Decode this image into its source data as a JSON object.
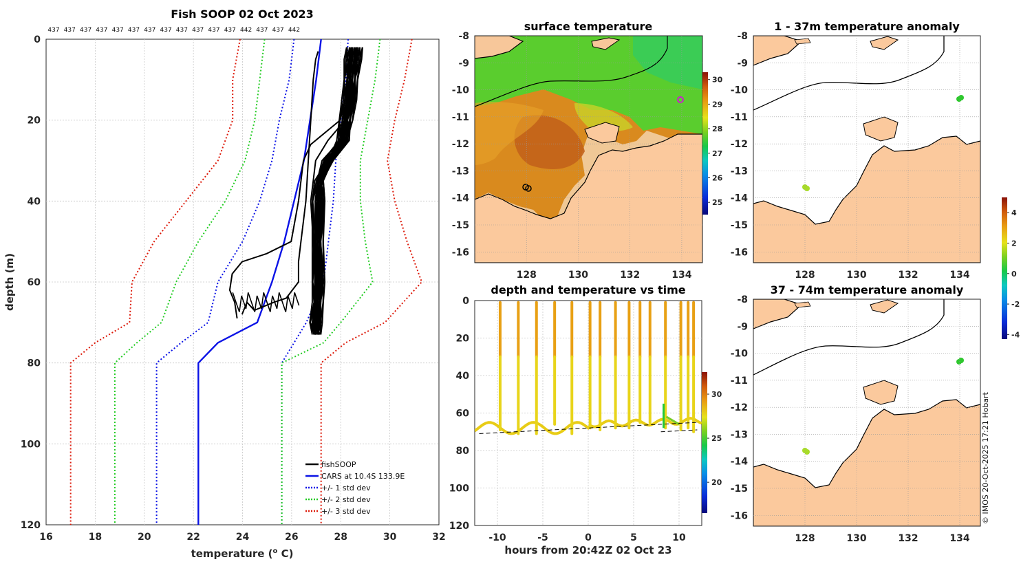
{
  "colors": {
    "land": "#fbc99d",
    "profile": "#000000",
    "cars": "#0a12e6",
    "std1": "#0a12e6",
    "std2": "#22cc22",
    "std3": "#dd1a0a",
    "grid": "#c8c8c8"
  },
  "chart_data": [
    {
      "name": "profile",
      "type": "line",
      "title": "Fish SOOP 02 Oct 2023",
      "top_labels": [
        "437",
        "437",
        "437",
        "437",
        "437",
        "437",
        "437",
        "437",
        "437",
        "437",
        "437",
        "437",
        "442",
        "437",
        "437",
        "442"
      ],
      "xlabel": "temperature (° C)",
      "xlabel_prefix": "temperature (",
      "xlabel_sup": "o",
      "xlabel_suffix": " C)",
      "ylabel": "depth (m)",
      "xlim": [
        16,
        32
      ],
      "ylim": [
        0,
        120
      ],
      "xticks": [
        16,
        18,
        20,
        22,
        24,
        26,
        28,
        30,
        32
      ],
      "yticks": [
        0,
        20,
        40,
        60,
        80,
        100,
        120
      ],
      "legend": [
        "fishSOOP",
        "CARS at 10.4S 133.9E",
        "+/- 1 std dev",
        "+/- 2 std dev",
        "+/- 3 std dev"
      ],
      "series": [
        {
          "name": "CARS",
          "depth": [
            0,
            10,
            30,
            50,
            60,
            65,
            70,
            75,
            80,
            120
          ],
          "temp": [
            27.2,
            27.0,
            26.5,
            25.7,
            25.2,
            24.9,
            24.6,
            23.0,
            22.2,
            22.2
          ]
        },
        {
          "name": "+1 std",
          "depth": [
            0,
            10,
            20,
            30,
            40,
            50,
            60,
            70,
            80,
            120
          ],
          "temp": [
            28.3,
            28.2,
            28.0,
            27.8,
            27.7,
            27.5,
            27.3,
            26.6,
            25.6,
            25.6
          ]
        },
        {
          "name": "-1 std",
          "depth": [
            0,
            10,
            20,
            30,
            40,
            50,
            60,
            70,
            75,
            80,
            120
          ],
          "temp": [
            26.1,
            25.9,
            25.5,
            25.2,
            24.7,
            24.0,
            23.0,
            22.6,
            21.5,
            20.5,
            20.5
          ]
        },
        {
          "name": "+2 std",
          "depth": [
            0,
            10,
            20,
            30,
            40,
            50,
            60,
            70,
            75,
            80,
            120
          ],
          "temp": [
            29.6,
            29.4,
            29.1,
            28.8,
            28.8,
            29.0,
            29.3,
            28.0,
            27.3,
            25.6,
            25.6
          ]
        },
        {
          "name": "-2 std",
          "depth": [
            0,
            10,
            20,
            30,
            40,
            50,
            60,
            70,
            75,
            80,
            120
          ],
          "temp": [
            24.9,
            24.7,
            24.5,
            24.1,
            23.3,
            22.2,
            21.3,
            20.7,
            19.7,
            18.8,
            18.8
          ]
        },
        {
          "name": "+3 std",
          "depth": [
            0,
            10,
            20,
            30,
            40,
            50,
            60,
            70,
            75,
            80,
            120
          ],
          "temp": [
            30.9,
            30.6,
            30.2,
            29.9,
            30.2,
            30.7,
            31.3,
            29.8,
            28.2,
            27.2,
            27.2
          ]
        },
        {
          "name": "-3 std",
          "depth": [
            0,
            10,
            20,
            30,
            40,
            50,
            60,
            70,
            75,
            80,
            120
          ],
          "temp": [
            23.9,
            23.6,
            23.6,
            23.0,
            21.7,
            20.4,
            19.5,
            19.4,
            18.0,
            17.0,
            17.0
          ]
        }
      ],
      "profiles": [
        {
          "depth": [
            2,
            5,
            10,
            15,
            20,
            25,
            28,
            30,
            35,
            40,
            50,
            60,
            65,
            70,
            73
          ],
          "temp": [
            28.4,
            28.3,
            28.3,
            28.2,
            28.1,
            28.0,
            27.8,
            27.5,
            27.2,
            27.2,
            27.2,
            27.2,
            27.2,
            27.1,
            27.1
          ]
        },
        {
          "depth": [
            2,
            5,
            10,
            15,
            20,
            25,
            28,
            30,
            35,
            40,
            50,
            60,
            65,
            70,
            72
          ],
          "temp": [
            28.8,
            28.7,
            28.6,
            28.5,
            28.4,
            28.1,
            27.7,
            27.4,
            27.2,
            27.2,
            27.1,
            27.1,
            27.1,
            27.0,
            27.0
          ]
        },
        {
          "depth": [
            2,
            5,
            10,
            15,
            20,
            25,
            30,
            35,
            40,
            50,
            60,
            65,
            70,
            73
          ],
          "temp": [
            28.6,
            28.5,
            28.5,
            28.4,
            28.3,
            28.2,
            27.6,
            27.1,
            27.0,
            27.0,
            27.0,
            27.0,
            26.9,
            27.0
          ]
        },
        {
          "depth": [
            3,
            8,
            15,
            20,
            25,
            30,
            35,
            40,
            50,
            60,
            66
          ],
          "temp": [
            28.5,
            28.4,
            28.3,
            28.2,
            27.5,
            27.0,
            26.9,
            26.8,
            26.9,
            27.0,
            27.0
          ]
        },
        {
          "depth": [
            3,
            8,
            15,
            20,
            22,
            24,
            26,
            30,
            40,
            50,
            53,
            55,
            58,
            62,
            65,
            69
          ],
          "temp": [
            28.5,
            28.3,
            28.2,
            28.0,
            27.6,
            27.2,
            26.8,
            26.5,
            26.3,
            26.0,
            25.0,
            24.0,
            23.6,
            23.5,
            23.7,
            23.8
          ]
        },
        {
          "depth": [
            3,
            5,
            10,
            20,
            30,
            40,
            45,
            50,
            55,
            60,
            64,
            65,
            66,
            67,
            65,
            68
          ],
          "temp": [
            27.1,
            27.0,
            26.9,
            26.8,
            26.7,
            26.6,
            26.5,
            26.4,
            26.3,
            26.3,
            25.8,
            25.3,
            24.9,
            24.5,
            24.2,
            24.0
          ]
        }
      ]
    },
    {
      "name": "sst",
      "type": "heatmap",
      "title": "surface temperature",
      "xlim": [
        126,
        134.8
      ],
      "ylim": [
        -16.4,
        -8
      ],
      "xticks": [
        128,
        130,
        132,
        134
      ],
      "yticks": [
        -8,
        -9,
        -10,
        -11,
        -12,
        -13,
        -14,
        -15,
        -16
      ],
      "colorbar": {
        "min": 24.5,
        "max": 30.3,
        "ticks": [
          25,
          26,
          27,
          28,
          29,
          30
        ]
      },
      "track_points": [
        {
          "lon": 133.9,
          "lat": -10.4
        },
        {
          "lon": 128.0,
          "lat": -13.6
        }
      ]
    },
    {
      "name": "anomaly",
      "type": "heatmap",
      "titles": [
        "1 - 37m temperature anomaly",
        "37 - 74m temperature anomaly"
      ],
      "xlim": [
        126,
        134.8
      ],
      "ylim": [
        -16.4,
        -8
      ],
      "xticks": [
        128,
        130,
        132,
        134
      ],
      "yticks": [
        -8,
        -9,
        -10,
        -11,
        -12,
        -13,
        -14,
        -15,
        -16
      ],
      "colorbar": {
        "min": -4.3,
        "max": 5.0,
        "ticks": [
          -4,
          -2,
          0,
          2,
          4
        ]
      },
      "track_points": [
        {
          "lon": 133.9,
          "lat": -10.3,
          "anom": 0.2
        },
        {
          "lon": 128.0,
          "lat": -13.7,
          "anom": 1.5
        }
      ]
    },
    {
      "name": "time",
      "type": "scatter",
      "title": "depth and temperature vs time",
      "xlabel": "hours from 20:42Z 02 Oct 23",
      "xlim": [
        -12.5,
        12.5
      ],
      "ylim": [
        0,
        120
      ],
      "xticks": [
        -10,
        -5,
        0,
        5,
        10
      ],
      "yticks": [
        0,
        20,
        40,
        60,
        80,
        100,
        120
      ],
      "colorbar": {
        "min": 16.5,
        "max": 32.5,
        "ticks": [
          20,
          25,
          30
        ]
      },
      "casts": [
        -9.7,
        -7.7,
        -5.7,
        -3.7,
        -1.8,
        0.2,
        1.3,
        3.0,
        4.5,
        5.7,
        6.8,
        8.5,
        10.2,
        11.0,
        11.6
      ],
      "bottom_depths": [
        69,
        71,
        71,
        66,
        71,
        68,
        69,
        68,
        68,
        65,
        65,
        68,
        69,
        68,
        70
      ],
      "bottom_line": [
        {
          "h": -12.0,
          "d": 71
        },
        {
          "h": 12.0,
          "d": 65
        }
      ],
      "bottom_line2": [
        {
          "h": 8.0,
          "d": 70
        },
        {
          "h": 12.0,
          "d": 69
        }
      ]
    }
  ],
  "credit": "© IMOS 20-Oct-2025 17:21 Hobart"
}
